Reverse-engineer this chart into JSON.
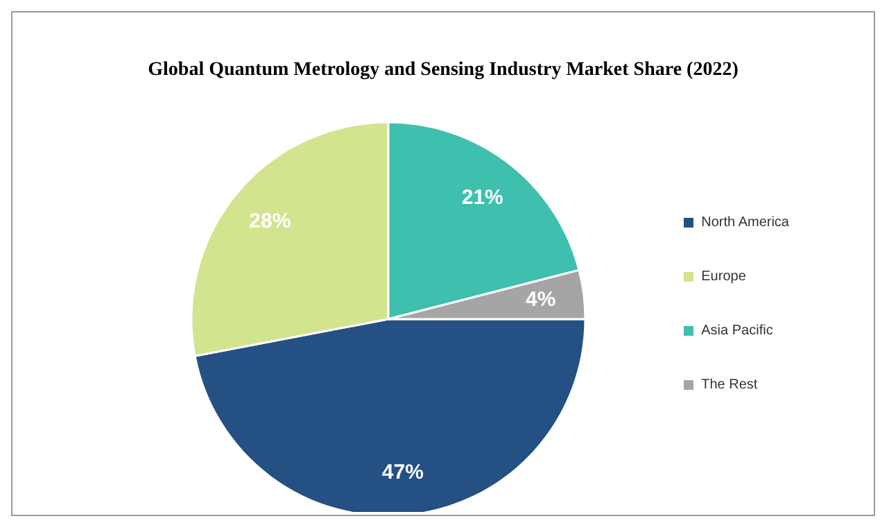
{
  "chart_data": {
    "type": "pie",
    "title": "Global Quantum Metrology and Sensing Industry Market Share (2022)",
    "categories": [
      "North America",
      "Europe",
      "Asia Pacific",
      "The Rest"
    ],
    "values": [
      47,
      28,
      21,
      4
    ],
    "colors": [
      "#245083",
      "#d3e48e",
      "#3fbfae",
      "#a5a5a5"
    ],
    "value_labels": [
      "47%",
      "28%",
      "21%",
      "4%"
    ],
    "legend": "right"
  }
}
